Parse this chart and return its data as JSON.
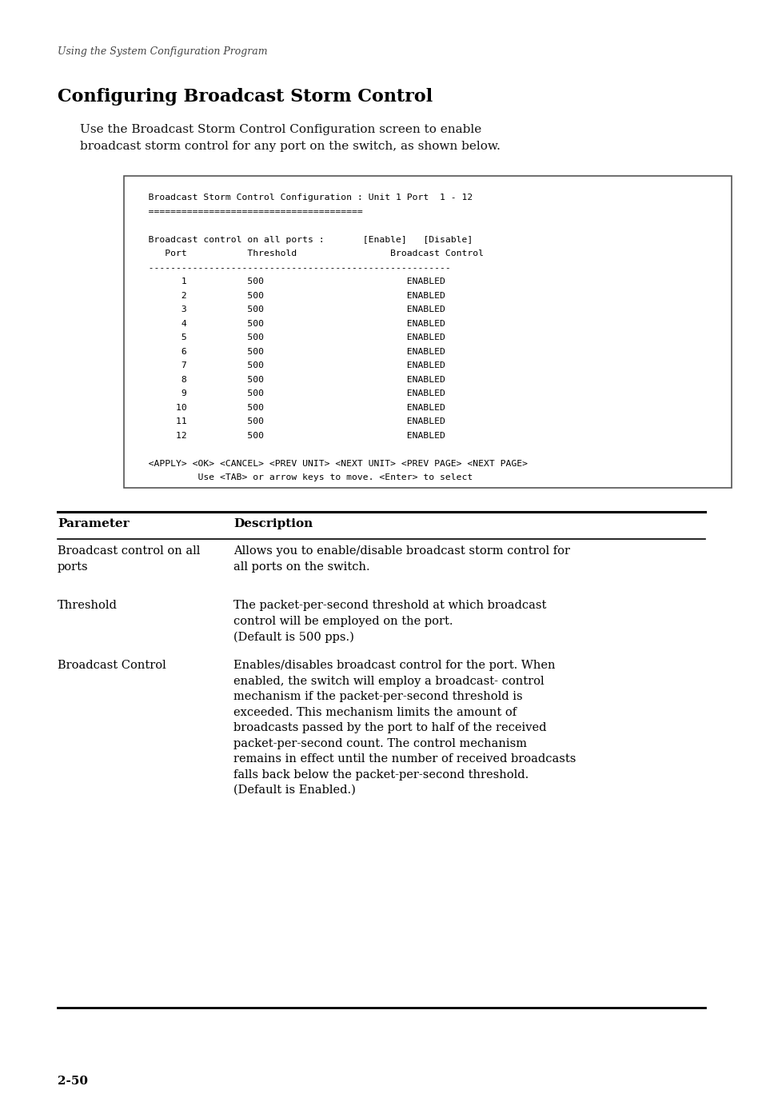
{
  "page_bg": "#ffffff",
  "header_italic": "Using the System Configuration Program",
  "section_title": "Configuring Broadcast Storm Control",
  "intro_text": "Use the Broadcast Storm Control Configuration screen to enable\nbroadcast storm control for any port on the switch, as shown below.",
  "terminal_lines": [
    "   Broadcast Storm Control Configuration : Unit 1 Port  1 - 12",
    "   =======================================",
    "",
    "   Broadcast control on all ports :       [Enable]   [Disable]",
    "      Port           Threshold                 Broadcast Control",
    "   -------------------------------------------------------",
    "         1           500                          ENABLED",
    "         2           500                          ENABLED",
    "         3           500                          ENABLED",
    "         4           500                          ENABLED",
    "         5           500                          ENABLED",
    "         6           500                          ENABLED",
    "         7           500                          ENABLED",
    "         8           500                          ENABLED",
    "         9           500                          ENABLED",
    "        10           500                          ENABLED",
    "        11           500                          ENABLED",
    "        12           500                          ENABLED",
    "",
    "   <APPLY> <OK> <CANCEL> <PREV UNIT> <NEXT UNIT> <PREV PAGE> <NEXT PAGE>",
    "            Use <TAB> or arrow keys to move. <Enter> to select"
  ],
  "table_header_param": "Parameter",
  "table_header_desc": "Description",
  "table_rows": [
    {
      "param": "Broadcast control on all\nports",
      "desc": "Allows you to enable/disable broadcast storm control for\nall ports on the switch."
    },
    {
      "param": "Threshold",
      "desc": "The packet-per-second threshold at which broadcast\ncontrol will be employed on the port.\n(Default is 500 pps.)"
    },
    {
      "param": "Broadcast Control",
      "desc": "Enables/disables broadcast control for the port. When\nenabled, the switch will employ a broadcast- control\nmechanism if the packet-per-second threshold is\nexceeded. This mechanism limits the amount of\nbroadcasts passed by the port to half of the received\npacket-per-second count. The control mechanism\nremains in effect until the number of received broadcasts\nfalls back below the packet-per-second threshold.\n(Default is Enabled.)"
    }
  ],
  "page_number": "2-50"
}
